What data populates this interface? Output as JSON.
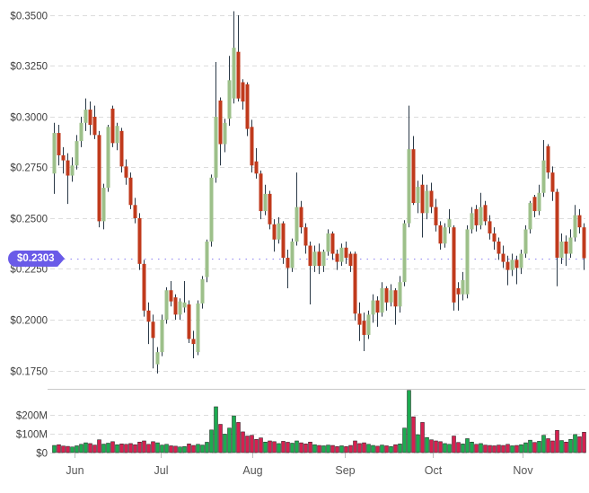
{
  "colors": {
    "background": "#FFFFFF",
    "up_body": "#9DC08A",
    "down_body": "#C03A1C",
    "wick": "#2A3947",
    "volume_up": "#1CAB50",
    "volume_down": "#D62050",
    "volume_outline": "#1B1B1B",
    "grid": "#DCDCDC",
    "divider": "#C9C9C9",
    "axis_text": "#3F3F3F",
    "month_text": "#555555",
    "month_tick": "#BDBDBD",
    "badge_bg": "#6A5BE8",
    "badge_text": "#FFFFFF",
    "price_line": "#7B6EF0"
  },
  "chart_data": {
    "type": "candlestick",
    "subtype": "price-with-volume-pane",
    "title": "",
    "grid": "horizontal-dashed",
    "current_price": {
      "value": 0.2303,
      "label": "$0.2303"
    },
    "price_axis": {
      "tick_values": [
        0.35,
        0.325,
        0.3,
        0.275,
        0.25,
        0.225,
        0.2,
        0.175
      ],
      "tick_labels": [
        "$0.3500",
        "$0.3250",
        "$0.3000",
        "$0.2750",
        "$0.2500",
        "$0.2250",
        "$0.2000",
        "$0.1750"
      ],
      "range": [
        0.166,
        0.3575
      ]
    },
    "volume_axis": {
      "tick_values": [
        200,
        100,
        0
      ],
      "tick_labels": [
        "$200M",
        "$100M",
        "$0"
      ],
      "unit": "M",
      "range": [
        0,
        340
      ]
    },
    "x_axis": {
      "month_labels": [
        "Jun",
        "Jul",
        "Aug",
        "Sep",
        "Oct",
        "Nov"
      ],
      "month_tick_bar_index": [
        4.4,
        23.6,
        44,
        64.6,
        84.2,
        104.2
      ]
    },
    "candles": {
      "format": [
        "open",
        "high",
        "low",
        "close",
        "volume_musd"
      ],
      "values": [
        [
          0.272,
          0.297,
          0.262,
          0.292,
          38
        ],
        [
          0.292,
          0.296,
          0.276,
          0.281,
          42
        ],
        [
          0.281,
          0.285,
          0.272,
          0.2785,
          35
        ],
        [
          0.2785,
          0.282,
          0.257,
          0.271,
          33
        ],
        [
          0.271,
          0.28,
          0.268,
          0.276,
          30
        ],
        [
          0.276,
          0.291,
          0.274,
          0.288,
          36
        ],
        [
          0.288,
          0.3,
          0.285,
          0.297,
          44
        ],
        [
          0.297,
          0.309,
          0.293,
          0.3035,
          52
        ],
        [
          0.3035,
          0.3075,
          0.291,
          0.296,
          48
        ],
        [
          0.3,
          0.3055,
          0.289,
          0.291,
          40
        ],
        [
          0.291,
          0.293,
          0.2455,
          0.2485,
          68
        ],
        [
          0.2485,
          0.267,
          0.2445,
          0.265,
          45
        ],
        [
          0.265,
          0.296,
          0.263,
          0.295,
          50
        ],
        [
          0.304,
          0.3055,
          0.285,
          0.287,
          58
        ],
        [
          0.287,
          0.297,
          0.2835,
          0.2955,
          42
        ],
        [
          0.293,
          0.2945,
          0.2725,
          0.2755,
          46
        ],
        [
          0.2755,
          0.279,
          0.2665,
          0.27,
          44
        ],
        [
          0.27,
          0.2725,
          0.2545,
          0.2565,
          48
        ],
        [
          0.2565,
          0.26,
          0.2475,
          0.25,
          42
        ],
        [
          0.25,
          0.2525,
          0.2245,
          0.2275,
          56
        ],
        [
          0.2275,
          0.2295,
          0.2015,
          0.2045,
          62
        ],
        [
          0.2045,
          0.2085,
          0.188,
          0.199,
          44
        ],
        [
          0.199,
          0.2025,
          0.176,
          0.191,
          58
        ],
        [
          0.178,
          0.1865,
          0.1735,
          0.184,
          52
        ],
        [
          0.184,
          0.2025,
          0.182,
          0.2,
          40
        ],
        [
          0.2,
          0.216,
          0.198,
          0.2145,
          44
        ],
        [
          0.2145,
          0.219,
          0.2065,
          0.209,
          36
        ],
        [
          0.211,
          0.2125,
          0.2,
          0.2025,
          34
        ],
        [
          0.2025,
          0.2105,
          0.2,
          0.209,
          30
        ],
        [
          0.206,
          0.219,
          0.2035,
          0.2085,
          32
        ],
        [
          0.2075,
          0.2095,
          0.1885,
          0.1905,
          46
        ],
        [
          0.1905,
          0.1945,
          0.181,
          0.188,
          38
        ],
        [
          0.184,
          0.2095,
          0.1825,
          0.208,
          44
        ],
        [
          0.208,
          0.2215,
          0.2055,
          0.22,
          40
        ],
        [
          0.221,
          0.2395,
          0.2185,
          0.2385,
          55
        ],
        [
          0.2385,
          0.2715,
          0.236,
          0.27,
          120
        ],
        [
          0.27,
          0.327,
          0.2675,
          0.3,
          243
        ],
        [
          0.308,
          0.3095,
          0.276,
          0.2865,
          150
        ],
        [
          0.2865,
          0.299,
          0.2825,
          0.297,
          98
        ],
        [
          0.299,
          0.33,
          0.2955,
          0.318,
          130
        ],
        [
          0.309,
          0.352,
          0.3065,
          0.334,
          195
        ],
        [
          0.332,
          0.35,
          0.3075,
          0.309,
          160
        ],
        [
          0.317,
          0.3185,
          0.3035,
          0.3075,
          110
        ],
        [
          0.316,
          0.317,
          0.2905,
          0.294,
          88
        ],
        [
          0.295,
          0.2985,
          0.2725,
          0.276,
          92
        ],
        [
          0.278,
          0.2845,
          0.2695,
          0.272,
          70
        ],
        [
          0.272,
          0.2735,
          0.2495,
          0.2535,
          78
        ],
        [
          0.2535,
          0.2665,
          0.2515,
          0.262,
          56
        ],
        [
          0.262,
          0.2635,
          0.2445,
          0.247,
          62
        ],
        [
          0.247,
          0.2495,
          0.2335,
          0.2395,
          58
        ],
        [
          0.2395,
          0.2505,
          0.2375,
          0.2475,
          48
        ],
        [
          0.2475,
          0.2485,
          0.2275,
          0.2305,
          60
        ],
        [
          0.2305,
          0.2345,
          0.2155,
          0.2255,
          55
        ],
        [
          0.2255,
          0.24,
          0.2235,
          0.2385,
          50
        ],
        [
          0.2385,
          0.2725,
          0.2365,
          0.2555,
          62
        ],
        [
          0.2555,
          0.2585,
          0.2425,
          0.2455,
          52
        ],
        [
          0.2455,
          0.2475,
          0.2325,
          0.2365,
          46
        ],
        [
          0.2365,
          0.2385,
          0.2075,
          0.2265,
          56
        ],
        [
          0.2265,
          0.2365,
          0.2235,
          0.2335,
          42
        ],
        [
          0.2335,
          0.2375,
          0.2225,
          0.2265,
          38
        ],
        [
          0.2265,
          0.2345,
          0.2235,
          0.2335,
          36
        ],
        [
          0.2335,
          0.2445,
          0.2315,
          0.2425,
          40
        ],
        [
          0.2425,
          0.2435,
          0.2295,
          0.2325,
          38
        ],
        [
          0.2325,
          0.2345,
          0.2245,
          0.2285,
          32
        ],
        [
          0.2285,
          0.2375,
          0.2265,
          0.2355,
          36
        ],
        [
          0.2355,
          0.2385,
          0.2275,
          0.2305,
          32
        ],
        [
          0.2325,
          0.2335,
          0.2235,
          0.2265,
          38
        ],
        [
          0.2325,
          0.2335,
          0.1995,
          0.203,
          62
        ],
        [
          0.203,
          0.2085,
          0.1895,
          0.1975,
          48
        ],
        [
          0.1995,
          0.2035,
          0.1845,
          0.1925,
          52
        ],
        [
          0.1925,
          0.2045,
          0.1905,
          0.2025,
          44
        ],
        [
          0.2025,
          0.2125,
          0.1985,
          0.2095,
          38
        ],
        [
          0.2095,
          0.2115,
          0.1965,
          0.2035,
          34
        ],
        [
          0.2035,
          0.2185,
          0.2015,
          0.2155,
          40
        ],
        [
          0.2155,
          0.2165,
          0.2045,
          0.2085,
          36
        ],
        [
          0.2085,
          0.2175,
          0.2065,
          0.2145,
          32
        ],
        [
          0.2145,
          0.2155,
          0.1975,
          0.2065,
          42
        ],
        [
          0.2065,
          0.2215,
          0.2035,
          0.2185,
          46
        ],
        [
          0.2185,
          0.249,
          0.2165,
          0.2475,
          130
        ],
        [
          0.2475,
          0.3055,
          0.2455,
          0.284,
          330
        ],
        [
          0.284,
          0.2905,
          0.2565,
          0.2575,
          190
        ],
        [
          0.2575,
          0.2685,
          0.2525,
          0.2655,
          95
        ],
        [
          0.2665,
          0.2715,
          0.2405,
          0.2525,
          160
        ],
        [
          0.2525,
          0.2665,
          0.2495,
          0.2635,
          80
        ],
        [
          0.2635,
          0.2675,
          0.2525,
          0.2555,
          68
        ],
        [
          0.2555,
          0.2595,
          0.2435,
          0.2465,
          62
        ],
        [
          0.2465,
          0.2485,
          0.2345,
          0.2375,
          58
        ],
        [
          0.2375,
          0.2475,
          0.2355,
          0.2455,
          48
        ],
        [
          0.2455,
          0.2545,
          0.2425,
          0.2495,
          44
        ],
        [
          0.2455,
          0.2465,
          0.2045,
          0.2085,
          88
        ],
        [
          0.2155,
          0.2185,
          0.2045,
          0.2125,
          54
        ],
        [
          0.2125,
          0.2235,
          0.2095,
          0.2195,
          46
        ],
        [
          0.2125,
          0.2465,
          0.2105,
          0.2445,
          74
        ],
        [
          0.2445,
          0.2555,
          0.2425,
          0.2525,
          56
        ],
        [
          0.2545,
          0.2565,
          0.2435,
          0.2465,
          44
        ],
        [
          0.2465,
          0.2625,
          0.2445,
          0.2555,
          48
        ],
        [
          0.2565,
          0.2585,
          0.2465,
          0.2485,
          40
        ],
        [
          0.2485,
          0.2515,
          0.2395,
          0.2425,
          38
        ],
        [
          0.2425,
          0.2455,
          0.2345,
          0.2385,
          36
        ],
        [
          0.2385,
          0.2405,
          0.2295,
          0.2325,
          40
        ],
        [
          0.2325,
          0.2365,
          0.2255,
          0.2285,
          38
        ],
        [
          0.2285,
          0.2315,
          0.217,
          0.2245,
          44
        ],
        [
          0.2245,
          0.2325,
          0.2215,
          0.2295,
          36
        ],
        [
          0.2295,
          0.2315,
          0.2175,
          0.2255,
          38
        ],
        [
          0.2255,
          0.2345,
          0.2225,
          0.2325,
          42
        ],
        [
          0.2325,
          0.2465,
          0.2305,
          0.2445,
          52
        ],
        [
          0.2445,
          0.2585,
          0.2425,
          0.2575,
          66
        ],
        [
          0.2605,
          0.2615,
          0.2505,
          0.2535,
          54
        ],
        [
          0.2535,
          0.2665,
          0.2515,
          0.2625,
          60
        ],
        [
          0.2625,
          0.2885,
          0.2605,
          0.2785,
          92
        ],
        [
          0.2855,
          0.2865,
          0.2695,
          0.2725,
          74
        ],
        [
          0.2725,
          0.2755,
          0.2585,
          0.263,
          62
        ],
        [
          0.263,
          0.2645,
          0.2165,
          0.2305,
          118
        ],
        [
          0.2305,
          0.2425,
          0.2275,
          0.2385,
          64
        ],
        [
          0.2385,
          0.2415,
          0.2265,
          0.2325,
          56
        ],
        [
          0.2325,
          0.2445,
          0.2305,
          0.2405,
          70
        ],
        [
          0.2405,
          0.2565,
          0.2385,
          0.2515,
          96
        ],
        [
          0.2515,
          0.2545,
          0.2425,
          0.2455,
          84
        ],
        [
          0.2455,
          0.2475,
          0.2245,
          0.2303,
          108
        ]
      ]
    }
  }
}
